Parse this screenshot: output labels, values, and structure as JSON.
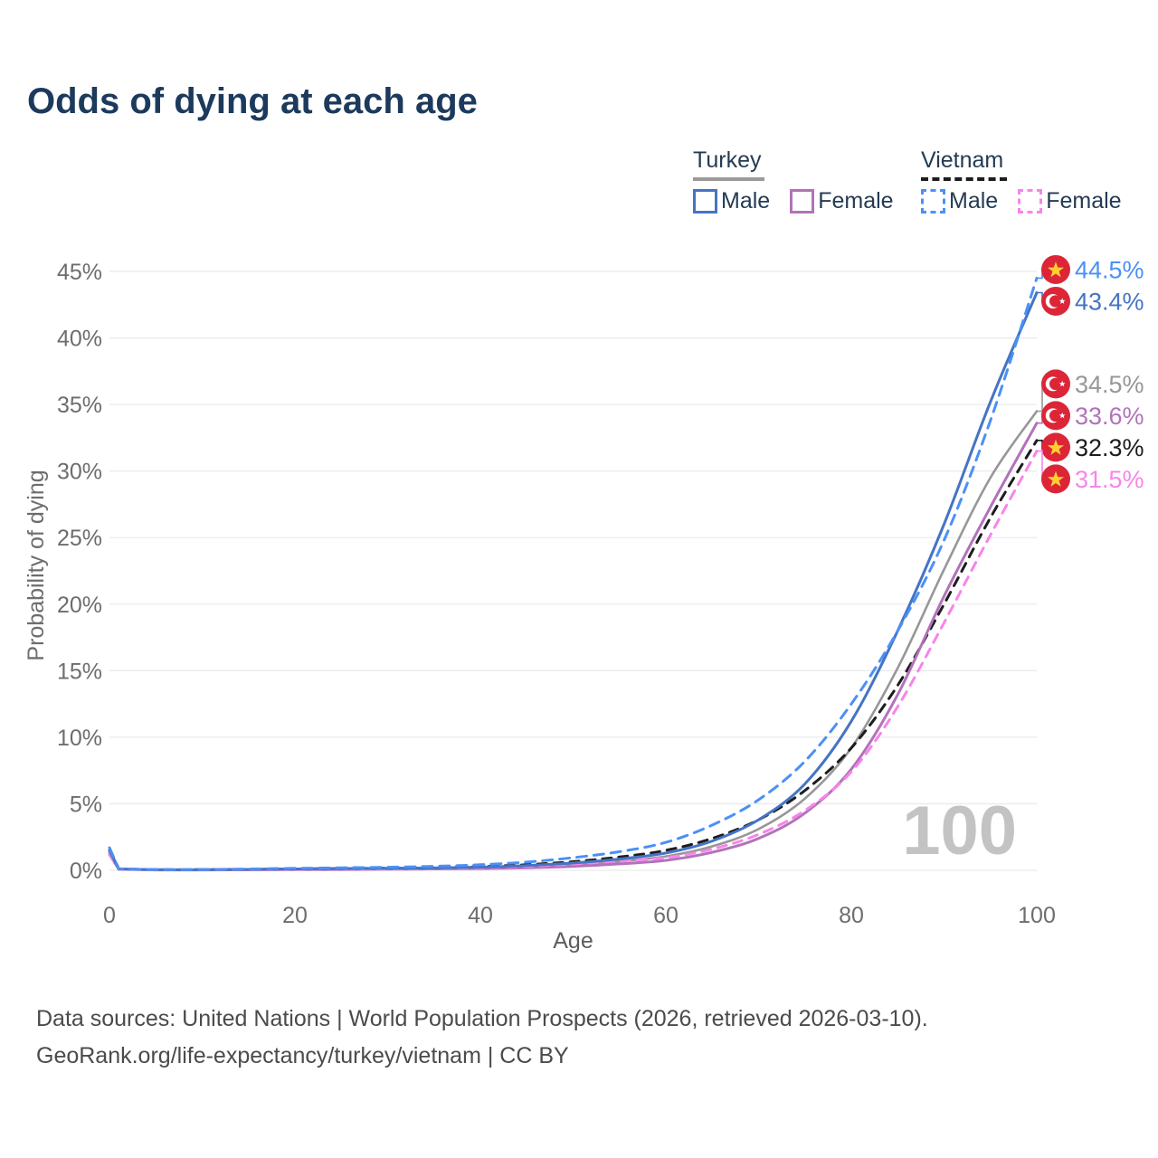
{
  "page": {
    "title": "Odds of dying at each age"
  },
  "legend": {
    "turkey": {
      "title": "Turkey",
      "male": "Male",
      "female": "Female"
    },
    "vietnam": {
      "title": "Vietnam",
      "male": "Male",
      "female": "Female"
    }
  },
  "colors": {
    "turkey_male": "#4574c4",
    "turkey_female": "#b272ba",
    "turkey_all": "#979797",
    "vietnam_male": "#4b90f7",
    "vietnam_female": "#f884ea",
    "vietnam_all": "#1d1d1d",
    "turkey_underline": "#9a9a9a",
    "vietnam_underline": "#1d1d1d",
    "flag_red": "#dc2638",
    "flag_star_yellow": "#ffce31",
    "flag_star_white": "#ffffff",
    "grid": "#ebebeb",
    "tick_text": "#6d6d6d",
    "axis_label_text": "#5d5d5d",
    "watermark": "#c3c3c3"
  },
  "chart_data": {
    "type": "line",
    "title": "Odds of dying at each age",
    "xlabel": "Age",
    "ylabel": "Probability of dying",
    "xlim": [
      0,
      100
    ],
    "ylim": [
      0,
      45
    ],
    "xticks": [
      0,
      20,
      40,
      60,
      80,
      100
    ],
    "yticks": [
      0,
      5,
      10,
      15,
      20,
      25,
      30,
      35,
      40,
      45
    ],
    "ytick_suffix": "%",
    "grid": "horizontal",
    "legend_position": "top-right",
    "watermark": "100",
    "ages": [
      0,
      1,
      5,
      10,
      15,
      20,
      25,
      30,
      35,
      40,
      45,
      50,
      55,
      60,
      65,
      70,
      75,
      80,
      85,
      90,
      95,
      100
    ],
    "series": [
      {
        "key": "turkey_all",
        "name": "Turkey",
        "country": "Turkey",
        "sex": "all",
        "flag": "turkey",
        "dash": null,
        "width": 2.6,
        "values": [
          1.4,
          0.09,
          0.04,
          0.04,
          0.06,
          0.08,
          0.1,
          0.12,
          0.14,
          0.19,
          0.28,
          0.43,
          0.67,
          1.05,
          1.8,
          3.1,
          5.4,
          9.2,
          15.2,
          22.6,
          29.5,
          34.5
        ],
        "end_label": "34.5%",
        "end_value": 34.5
      },
      {
        "key": "vietnam_all",
        "name": "Vietnam",
        "country": "Vietnam",
        "sex": "all",
        "flag": "vietnam",
        "dash": "10 8",
        "width": 3,
        "values": [
          1.5,
          0.1,
          0.05,
          0.05,
          0.07,
          0.1,
          0.13,
          0.16,
          0.21,
          0.28,
          0.42,
          0.65,
          1.0,
          1.5,
          2.4,
          3.8,
          6.0,
          9.2,
          13.9,
          20.0,
          26.5,
          32.3
        ],
        "end_label": "32.3%",
        "end_value": 32.3
      },
      {
        "key": "turkey_female",
        "name": "Turkey Female",
        "country": "Turkey",
        "sex": "female",
        "flag": "turkey",
        "dash": null,
        "width": 3,
        "values": [
          1.2,
          0.08,
          0.03,
          0.03,
          0.04,
          0.05,
          0.06,
          0.08,
          0.1,
          0.13,
          0.19,
          0.3,
          0.48,
          0.75,
          1.35,
          2.4,
          4.3,
          7.6,
          13.2,
          20.6,
          27.3,
          33.6
        ],
        "end_label": "33.6%",
        "end_value": 33.6
      },
      {
        "key": "vietnam_female",
        "name": "Vietnam Female",
        "country": "Vietnam",
        "sex": "female",
        "flag": "vietnam",
        "dash": "10 8",
        "width": 3,
        "values": [
          1.3,
          0.09,
          0.04,
          0.04,
          0.05,
          0.07,
          0.09,
          0.11,
          0.15,
          0.2,
          0.3,
          0.47,
          0.7,
          0.95,
          1.6,
          2.7,
          4.5,
          7.4,
          12.3,
          18.6,
          25.2,
          31.5
        ],
        "end_label": "31.5%",
        "end_value": 31.5
      },
      {
        "key": "turkey_male",
        "name": "Turkey Male",
        "country": "Turkey",
        "sex": "male",
        "flag": "turkey",
        "dash": null,
        "width": 3,
        "values": [
          1.5,
          0.1,
          0.05,
          0.05,
          0.07,
          0.1,
          0.12,
          0.15,
          0.18,
          0.24,
          0.36,
          0.55,
          0.85,
          1.3,
          2.2,
          3.8,
          6.5,
          11.2,
          18.0,
          26.0,
          35.2,
          43.4
        ],
        "end_label": "43.4%",
        "end_value": 43.4
      },
      {
        "key": "vietnam_male",
        "name": "Vietnam Male",
        "country": "Vietnam",
        "sex": "male",
        "flag": "vietnam",
        "dash": "11 8",
        "width": 3,
        "values": [
          1.7,
          0.12,
          0.06,
          0.06,
          0.1,
          0.15,
          0.19,
          0.23,
          0.3,
          0.42,
          0.62,
          0.95,
          1.4,
          2.1,
          3.4,
          5.3,
          8.2,
          12.5,
          18.0,
          24.8,
          33.8,
          44.5
        ],
        "end_label": "44.5%",
        "end_value": 44.5
      }
    ]
  },
  "footer": {
    "line1": "Data sources: United Nations | World Population Prospects (2026, retrieved 2026-03-10).",
    "line2": "GeoRank.org/life-expectancy/turkey/vietnam | CC BY"
  }
}
